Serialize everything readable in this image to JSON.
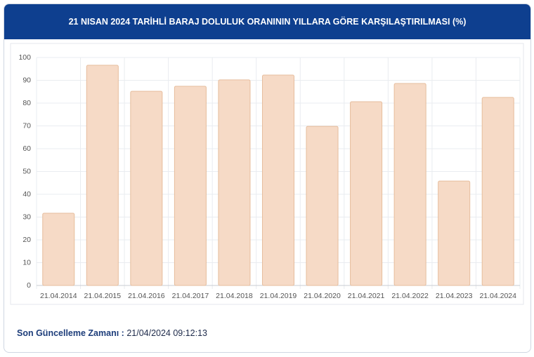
{
  "chart_data": {
    "type": "bar",
    "title": "21 NISAN 2024 TARİHLİ BARAJ DOLULUK ORANININ YILLARA GÖRE KARŞILAŞTIRILMASI (%)",
    "categories": [
      "21.04.2014",
      "21.04.2015",
      "21.04.2016",
      "21.04.2017",
      "21.04.2018",
      "21.04.2019",
      "21.04.2020",
      "21.04.2021",
      "21.04.2022",
      "21.04.2023",
      "21.04.2024"
    ],
    "values": [
      31.7,
      96.6,
      85.2,
      87.4,
      90.2,
      92.3,
      69.8,
      80.6,
      88.6,
      45.8,
      82.5
    ],
    "color": "#f6dac6",
    "stroke": "#e6bd9d",
    "ylim": [
      0,
      100
    ],
    "yticks": [
      0,
      10,
      20,
      30,
      40,
      50,
      60,
      70,
      80,
      90,
      100
    ],
    "grid": true
  },
  "footer": {
    "label": "Son Güncelleme Zamanı :",
    "value": "21/04/2024 09:12:13"
  }
}
